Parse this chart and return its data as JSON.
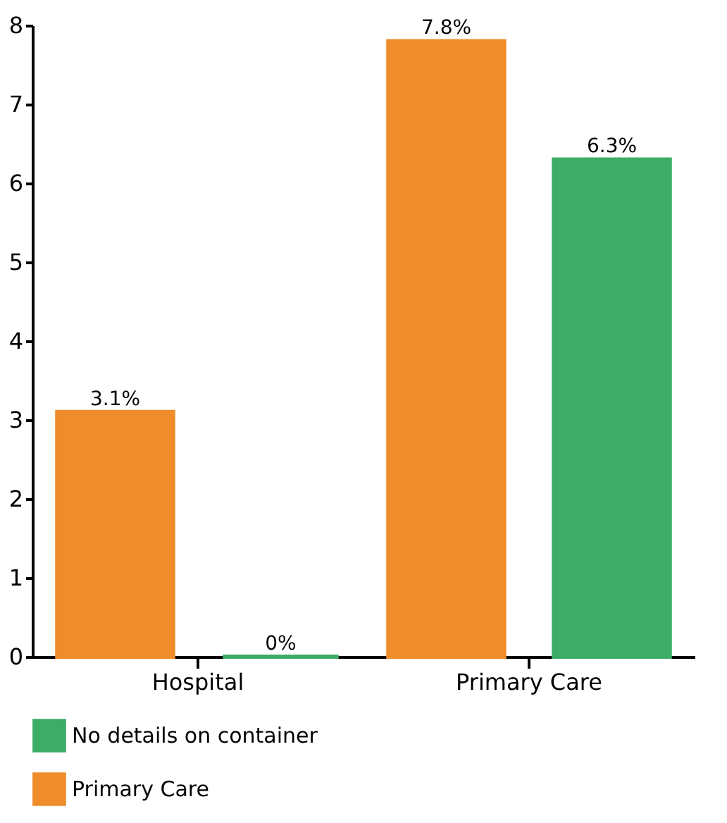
{
  "chart_data": {
    "type": "bar",
    "categories": [
      "Hospital",
      "Primary Care"
    ],
    "series": [
      {
        "name": "Primary Care",
        "color": "#f08c2a",
        "values": [
          3.1,
          7.8
        ],
        "value_labels": [
          "3.1%",
          "7.8%"
        ]
      },
      {
        "name": "No details on container",
        "color": "#3dac66",
        "values": [
          0,
          6.3
        ],
        "value_labels": [
          "0%",
          "6.3%"
        ]
      }
    ],
    "ylim": [
      0,
      8
    ],
    "yticks": [
      0,
      1,
      2,
      3,
      4,
      5,
      6,
      7,
      8
    ],
    "grid": false,
    "legend": "bottom"
  }
}
